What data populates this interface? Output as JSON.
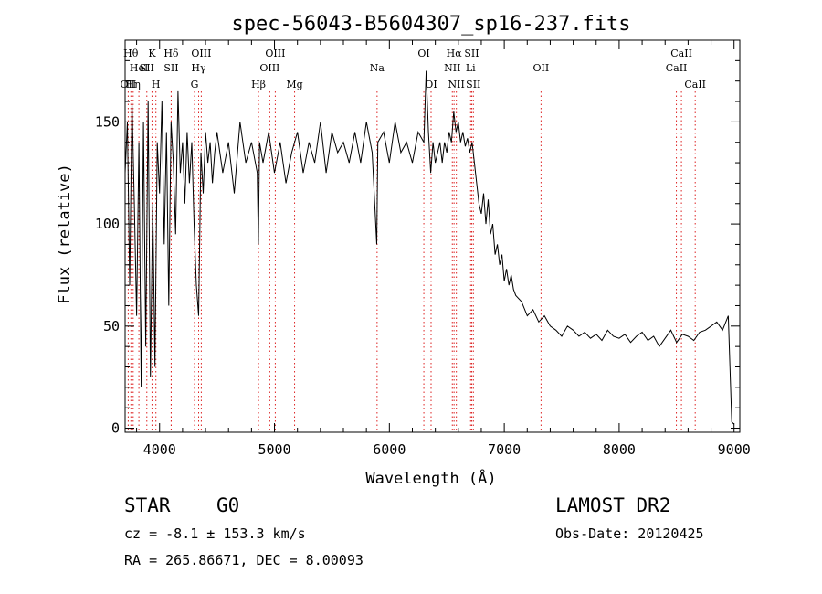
{
  "chart_data": {
    "type": "line",
    "title": "spec-56043-B5604307_sp16-237.fits",
    "xlabel": "Wavelength (Å)",
    "ylabel": "Flux (relative)",
    "xlim": [
      3700,
      9050
    ],
    "ylim": [
      -2,
      190
    ],
    "xticks": [
      4000,
      5000,
      6000,
      7000,
      8000,
      9000
    ],
    "yticks": [
      0,
      50,
      100,
      150
    ],
    "grid": false,
    "series": [
      {
        "x": [
          3700,
          3720,
          3740,
          3760,
          3780,
          3800,
          3820,
          3840,
          3860,
          3880,
          3900,
          3920,
          3940,
          3960,
          3980,
          4000,
          4020,
          4040,
          4060,
          4080,
          4100,
          4120,
          4140,
          4160,
          4180,
          4200,
          4220,
          4240,
          4260,
          4280,
          4300,
          4320,
          4340,
          4360,
          4380,
          4400,
          4420,
          4440,
          4460,
          4480,
          4500,
          4550,
          4600,
          4650,
          4700,
          4750,
          4800,
          4850,
          4860,
          4870,
          4900,
          4950,
          5000,
          5050,
          5100,
          5150,
          5200,
          5250,
          5300,
          5350,
          5400,
          5450,
          5500,
          5550,
          5600,
          5650,
          5700,
          5750,
          5800,
          5850,
          5890,
          5900,
          5950,
          6000,
          6050,
          6100,
          6150,
          6200,
          6250,
          6300,
          6320,
          6340,
          6360,
          6380,
          6400,
          6420,
          6440,
          6460,
          6480,
          6500,
          6520,
          6540,
          6560,
          6580,
          6600,
          6620,
          6640,
          6660,
          6680,
          6700,
          6720,
          6740,
          6760,
          6780,
          6800,
          6820,
          6840,
          6860,
          6880,
          6900,
          6920,
          6940,
          6960,
          6980,
          7000,
          7020,
          7040,
          7060,
          7080,
          7100,
          7150,
          7200,
          7250,
          7300,
          7350,
          7400,
          7450,
          7500,
          7550,
          7600,
          7650,
          7700,
          7750,
          7800,
          7850,
          7900,
          7950,
          8000,
          8050,
          8100,
          8150,
          8200,
          8250,
          8300,
          8350,
          8400,
          8450,
          8500,
          8550,
          8600,
          8650,
          8700,
          8750,
          8800,
          8850,
          8900,
          8950,
          8980,
          9000
        ],
        "y": [
          125,
          150,
          70,
          160,
          110,
          55,
          140,
          20,
          150,
          40,
          160,
          25,
          110,
          30,
          140,
          115,
          160,
          90,
          145,
          60,
          150,
          130,
          95,
          165,
          125,
          140,
          110,
          145,
          120,
          140,
          100,
          70,
          55,
          135,
          115,
          145,
          130,
          140,
          120,
          135,
          145,
          125,
          140,
          115,
          150,
          130,
          140,
          125,
          90,
          140,
          130,
          145,
          125,
          140,
          120,
          135,
          145,
          125,
          140,
          130,
          150,
          125,
          145,
          135,
          140,
          130,
          145,
          130,
          150,
          135,
          90,
          140,
          145,
          130,
          150,
          135,
          140,
          130,
          145,
          140,
          175,
          145,
          125,
          140,
          130,
          135,
          140,
          130,
          140,
          135,
          145,
          140,
          155,
          145,
          150,
          140,
          145,
          138,
          142,
          135,
          140,
          130,
          120,
          110,
          105,
          115,
          100,
          112,
          95,
          100,
          85,
          90,
          80,
          85,
          72,
          78,
          70,
          75,
          68,
          65,
          62,
          55,
          58,
          52,
          55,
          50,
          48,
          45,
          50,
          48,
          45,
          47,
          44,
          46,
          43,
          48,
          45,
          44,
          46,
          42,
          45,
          47,
          43,
          45,
          40,
          44,
          48,
          42,
          46,
          45,
          43,
          47,
          48,
          50,
          52,
          48,
          55,
          3,
          2
        ]
      }
    ],
    "line_markers": [
      {
        "x": 3727,
        "label": "OII",
        "row": 3
      },
      {
        "x": 3750,
        "label": "Hθ",
        "row": 1
      },
      {
        "x": 3770,
        "label": "Hη",
        "row": 3
      },
      {
        "x": 3820,
        "label": "HeI",
        "row": 2
      },
      {
        "x": 3889,
        "label": "SII",
        "row": 2
      },
      {
        "x": 3934,
        "label": "K",
        "row": 1
      },
      {
        "x": 3968,
        "label": "H",
        "row": 3
      },
      {
        "x": 4101,
        "label": "Hδ",
        "row": 1
      },
      {
        "x": 4101,
        "label": "SII",
        "row": 2
      },
      {
        "x": 4304,
        "label": "G",
        "row": 3
      },
      {
        "x": 4340,
        "label": "Hγ",
        "row": 2
      },
      {
        "x": 4363,
        "label": "OIII",
        "row": 1
      },
      {
        "x": 4861,
        "label": "Hβ",
        "row": 3
      },
      {
        "x": 4959,
        "label": "OIII",
        "row": 2
      },
      {
        "x": 5007,
        "label": "OIII",
        "row": 1
      },
      {
        "x": 5175,
        "label": "Mg",
        "row": 3
      },
      {
        "x": 5893,
        "label": "Na",
        "row": 2
      },
      {
        "x": 6300,
        "label": "OI",
        "row": 1
      },
      {
        "x": 6363,
        "label": "OI",
        "row": 3
      },
      {
        "x": 6548,
        "label": "NII",
        "row": 2
      },
      {
        "x": 6563,
        "label": "Hα",
        "row": 1
      },
      {
        "x": 6583,
        "label": "NII",
        "row": 3
      },
      {
        "x": 6707,
        "label": "Li",
        "row": 2
      },
      {
        "x": 6717,
        "label": "SII",
        "row": 1
      },
      {
        "x": 6731,
        "label": "SII",
        "row": 3
      },
      {
        "x": 7320,
        "label": "OII",
        "row": 2
      },
      {
        "x": 8498,
        "label": "CaII",
        "row": 2
      },
      {
        "x": 8542,
        "label": "CaII",
        "row": 1
      },
      {
        "x": 8662,
        "label": "CaII",
        "row": 3
      }
    ]
  },
  "info": {
    "class_label": "STAR",
    "subclass_label": "G0",
    "survey": "LAMOST DR2",
    "cz_text": "cz = -8.1 ± 153.3 km/s",
    "obs_date_text": "Obs-Date: 20120425",
    "radec_text": "RA = 265.86671, DEC =   8.00093"
  }
}
